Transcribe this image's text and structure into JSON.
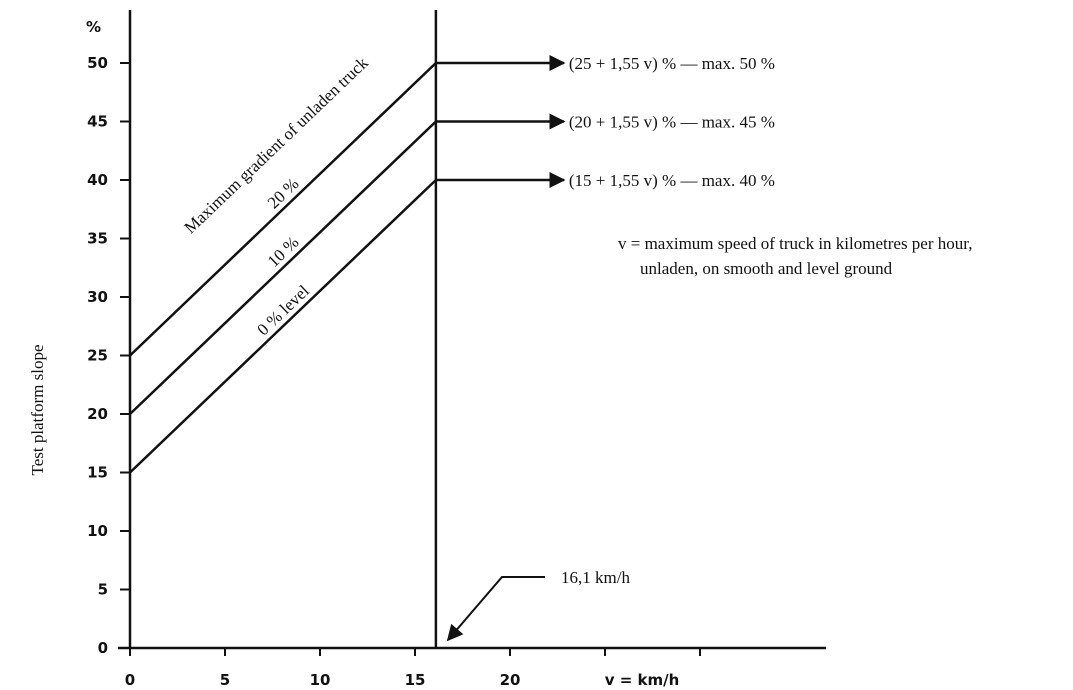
{
  "chart_data": {
    "type": "line",
    "title": "",
    "xlabel": "v = km/h",
    "ylabel": "Test platform slope",
    "y_unit_label": "%",
    "xlim": [
      0,
      35
    ],
    "ylim": [
      0,
      55
    ],
    "x_ticks": [
      0,
      5,
      10,
      15,
      20
    ],
    "y_ticks": [
      0,
      5,
      10,
      15,
      20,
      25,
      30,
      35,
      40,
      45,
      50
    ],
    "grid": false,
    "vertical_marker": {
      "x": 16.1,
      "label": "16,1 km/h"
    },
    "series_caption": "Maximum gradient of unladen truck",
    "series": [
      {
        "name": "20 %",
        "x": [
          0,
          16.1
        ],
        "values": [
          25,
          50
        ],
        "formula": "(25 + 1,55 v) % — max. 50 %"
      },
      {
        "name": "10 %",
        "x": [
          0,
          16.1
        ],
        "values": [
          20,
          45
        ],
        "formula": "(20 + 1,55 v) % — max. 45 %"
      },
      {
        "name": "0 % level",
        "x": [
          0,
          16.1
        ],
        "values": [
          15,
          40
        ],
        "formula": "(15 + 1,55 v) % — max. 40 %"
      }
    ],
    "note_lines": [
      "v = maximum speed of truck in kilometres per hour,",
      "unladen, on smooth and level ground"
    ]
  }
}
